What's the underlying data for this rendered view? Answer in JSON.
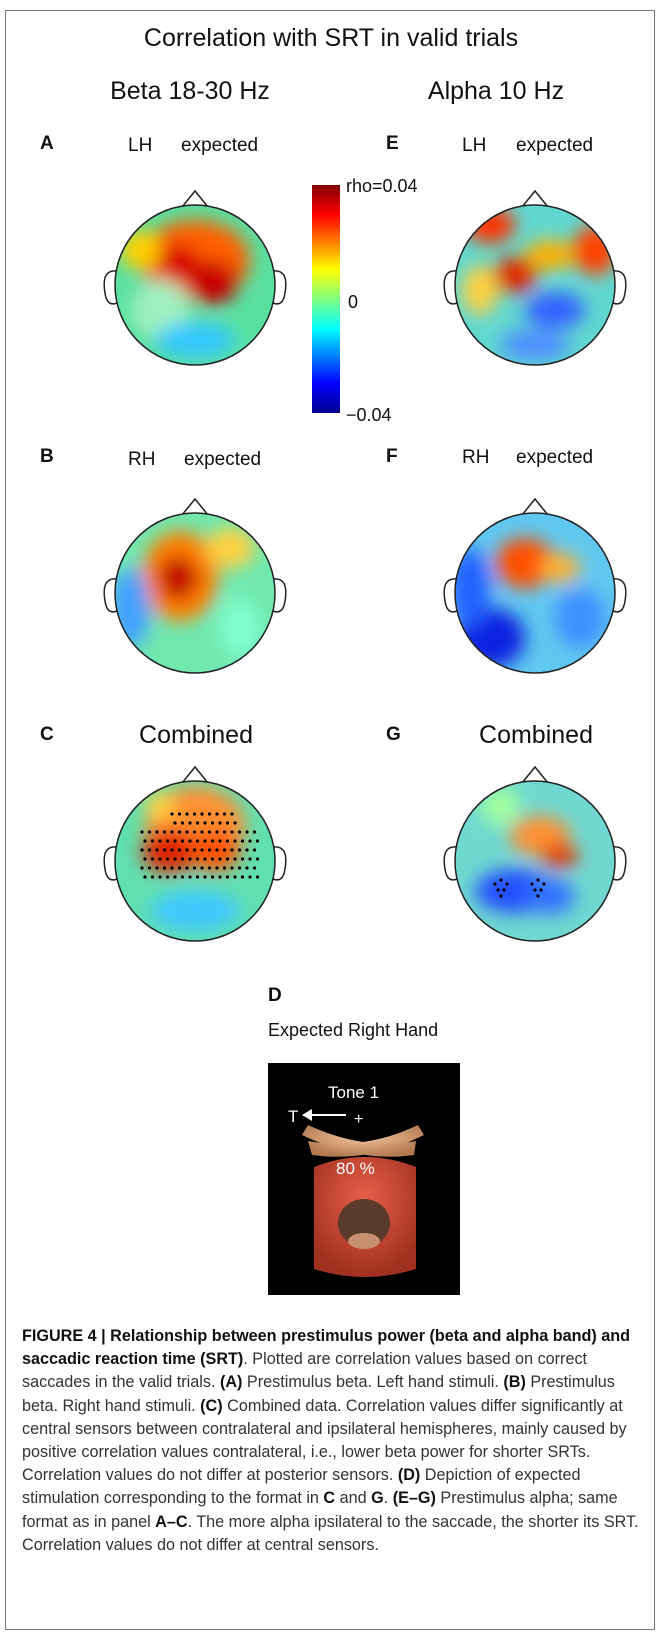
{
  "figure": {
    "title": "Correlation with SRT in valid trials",
    "columns": [
      "Beta 18-30 Hz",
      "Alpha 10 Hz"
    ],
    "panels": {
      "A": {
        "letter": "A",
        "hand": "LH",
        "condition": "expected"
      },
      "B": {
        "letter": "B",
        "hand": "RH",
        "condition": "expected"
      },
      "C": {
        "letter": "C",
        "label": "Combined"
      },
      "E": {
        "letter": "E",
        "hand": "LH",
        "condition": "expected"
      },
      "F": {
        "letter": "F",
        "hand": "RH",
        "condition": "expected"
      },
      "G": {
        "letter": "G",
        "label": "Combined"
      },
      "D": {
        "letter": "D",
        "label": "Expected Right Hand",
        "tone": "Tone 1",
        "target": "T",
        "fixation": "+",
        "percent": "80 %"
      }
    },
    "colorbar": {
      "max_label": "rho=0.04",
      "mid_label": "0",
      "min_label": "−0.04",
      "max": 0.04,
      "min": -0.04,
      "colormap": [
        "#00008f",
        "#0000ff",
        "#00ffff",
        "#ffff00",
        "#ff0000",
        "#800000"
      ]
    }
  },
  "caption": {
    "heading": "FIGURE 4 | Relationship between prestimulus power (beta and alpha band) and saccadic reaction time (SRT)",
    "s1": ". Plotted are correlation values based on correct saccades in the valid trials. ",
    "ref_a": "(A)",
    "s2": " Prestimulus beta. Left hand stimuli. ",
    "ref_b": "(B)",
    "s3": " Prestimulus beta. Right hand stimuli. ",
    "ref_c": "(C)",
    "s4": " Combined data. Correlation values differ significantly at central sensors between contralateral and ipsilateral hemispheres, mainly caused by positive correlation values contralateral, i.e., lower beta power for shorter SRTs. Correlation values do not differ at posterior sensors. ",
    "ref_d": "(D)",
    "s5": " Depiction of expected stimulation corresponding to the format in ",
    "ref_c2": "C",
    "s6": " and ",
    "ref_g": "G",
    "s7": ". ",
    "ref_eg": "(E–G)",
    "s8": " Prestimulus alpha; same format as in panel ",
    "ref_ac": "A–C",
    "s9": ". The more alpha ipsilateral to the saccade, the shorter its SRT. Correlation values do not differ at central sensors."
  }
}
